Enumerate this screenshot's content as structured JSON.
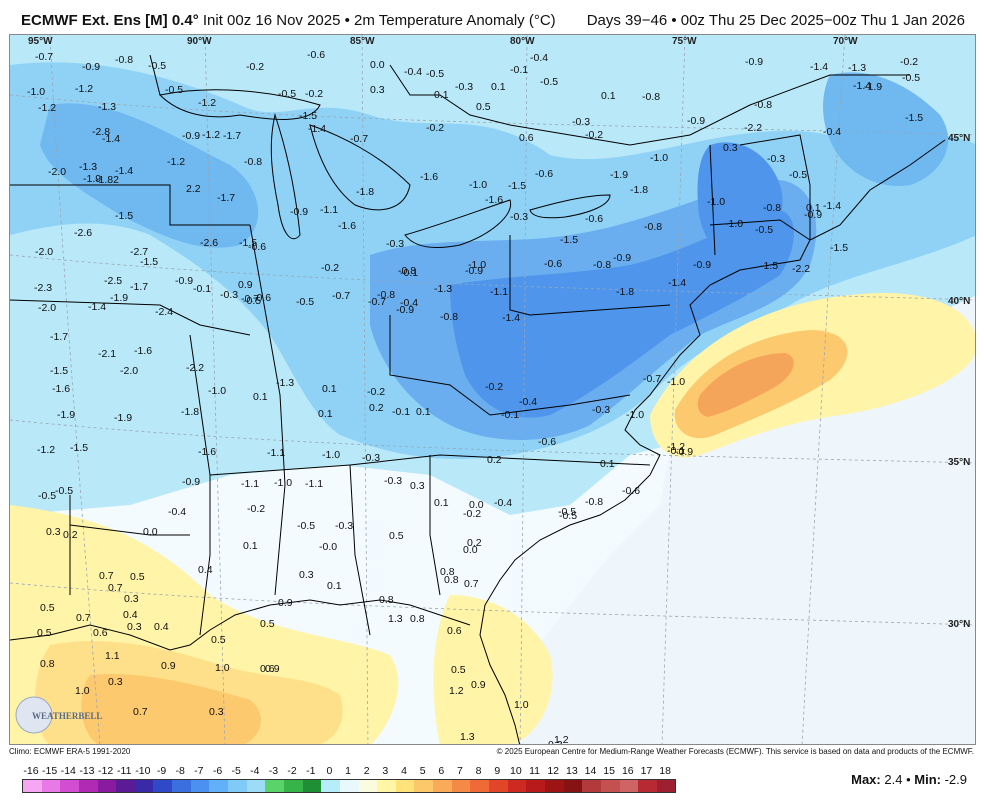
{
  "title": {
    "model": "ECMWF Ext. Ens [M] 0.4",
    "degree": "°",
    "init": "Init 00z 16 Nov 2025 • 2m Temperature Anomaly (°C)",
    "valid": "Days 39−46 • 00z Thu 25 Dec 2025−00z Thu 1 Jan 2026"
  },
  "credits": {
    "climo": "Climo: ECMWF ERA-5 1991-2020",
    "copyright": "© 2025 European Centre for Medium-Range Weather Forecasts (ECMWF). This service is based on data and products of the ECMWF."
  },
  "stats": {
    "max_label": "Max:",
    "max": "2.4",
    "sep": "•",
    "min_label": "Min:",
    "min": "-2.9"
  },
  "legend": {
    "ticks": [
      "-16",
      "-15",
      "-14",
      "-13",
      "-12",
      "-11",
      "-10",
      "-9",
      "-8",
      "-7",
      "-6",
      "-5",
      "-4",
      "-3",
      "-2",
      "-1",
      "0",
      "1",
      "2",
      "3",
      "4",
      "5",
      "6",
      "7",
      "8",
      "9",
      "10",
      "11",
      "12",
      "13",
      "14",
      "15",
      "16",
      "17",
      "18"
    ],
    "colors": [
      "#f6a6f2",
      "#e879e6",
      "#d24dd1",
      "#b02ab4",
      "#8a1aa0",
      "#5b1b96",
      "#3b2aa8",
      "#2f49c8",
      "#3b6fe0",
      "#4b92f0",
      "#62b0f7",
      "#80caf8",
      "#9cdcf6",
      "#5ad36a",
      "#36b44a",
      "#1f8f35",
      "#b7ecf9",
      "#e9f8fd",
      "#fbfbe0",
      "#fff6a6",
      "#ffe27a",
      "#fdc86a",
      "#f9ab5a",
      "#f58a46",
      "#ef6a36",
      "#e24628",
      "#cf2a22",
      "#b81a1c",
      "#9c1414",
      "#861214",
      "#b23a3a",
      "#c45050",
      "#cf6464",
      "#b72a33",
      "#9e2030"
    ]
  },
  "map": {
    "lon_labels": [
      "95°W",
      "90°W",
      "85°W",
      "80°W",
      "75°W",
      "70°W"
    ],
    "lat_labels": [
      "45°N",
      "40°N",
      "35°N",
      "30°N"
    ],
    "logo": "WEATHERBELL",
    "values": [
      "-0.7",
      "-0.9",
      "-0.8",
      "-0.5",
      "-0.2",
      "-0.6",
      "0.0",
      "-0.4",
      "-0.5",
      "-0.3",
      "-0.1",
      "-0.4",
      "-0.5",
      "-0.9",
      "-1.4",
      "-1.3",
      "-0.2",
      "-0.5",
      "-1.0",
      "-1.2",
      "-0.5",
      "-1.2",
      "-0.5",
      "-0.2",
      "0.3",
      "0.1",
      "0.5",
      "0.1",
      "-0.3",
      "0.1",
      "-0.8",
      "-0.9",
      "-0.8",
      "-1.4",
      "-1.9",
      "-1.2",
      "-1.3",
      "-1.2",
      "-1.5",
      "-1.4",
      "-0.7",
      "-0.2",
      "0.6",
      "-0.2",
      "0.3",
      "-0.3",
      "-2.2",
      "-2.8",
      "-1.4",
      "-0.9",
      "-1.7",
      "-1.8",
      "-1.6",
      "-0.6",
      "-1.0",
      "-0.5",
      "-0.4",
      "-1.5",
      "-2.0",
      "-1.3",
      "-1.4",
      "-1.2",
      "-0.8",
      "-1.0",
      "-1.5",
      "-1.9",
      "-1.8",
      "-1.0",
      "-0.8",
      "0.1",
      "-1.4",
      "-1.9",
      "-1.82",
      "2.2",
      "-1.7",
      "-0.9",
      "-1.1",
      "-1.6",
      "-1.6",
      "-0.3",
      "-0.6",
      "-0.8",
      "-1.0",
      "-0.5",
      "-0.9",
      "-1.5",
      "-2.6",
      "-2.6",
      "-1.5",
      "-0.6",
      "-0.3",
      "-0.8",
      "-1.0",
      "-1.5",
      "-0.9",
      "-0.9",
      "-1.5",
      "-2.2",
      "-2.0",
      "-2.7",
      "-1.5",
      "0.9",
      "-0.2",
      "-0.1",
      "-0.4",
      "-1.3",
      "-0.9",
      "-0.6",
      "-0.8",
      "-1.4",
      "-1.5",
      "-2.3",
      "-1.9",
      "-2.5",
      "-0.9",
      "-0.1",
      "-0.5",
      "-0.6",
      "-0.7",
      "-0.8",
      "-0.9",
      "-1.1",
      "-1.4",
      "-2.0",
      "-1.7",
      "-2.4",
      "-0.3",
      "-0.7",
      "-0.5",
      "-0.7",
      "-0.8",
      "-1.4",
      "-1.8",
      "-1.7",
      "-2.1",
      "-1.6",
      "-2.0",
      "-2.2",
      "-1.3",
      "0.1",
      "-0.2",
      "-0.1",
      "-0.2",
      "-0.4",
      "-0.7",
      "-1.0",
      "-1.5",
      "-1.6",
      "-1.9",
      "-1.9",
      "-1.8",
      "-1.0",
      "0.1",
      "0.1",
      "0.2",
      "0.1",
      "-0.1",
      "-0.3",
      "-0.6",
      "-1.0",
      "-1.2",
      "-1.2",
      "-1.5",
      "-1.6",
      "-1.1",
      "-1.0",
      "-0.3",
      "0.2",
      "0.1",
      "-0.1",
      "-0.5",
      "-0.9",
      "-1.1",
      "-1.0",
      "-1.1",
      "-0.3",
      "0.3",
      "0.1",
      "0.0",
      "-0.2",
      "-0.4",
      "-0.8",
      "-0.6",
      "-0.9",
      "-0.5",
      "-0.5",
      "-0.4",
      "-0.2",
      "-0.5",
      "-0.3",
      "-0.0",
      "0.5",
      "0.2",
      "0.3",
      "0.2",
      "0.0",
      "0.1",
      "0.0",
      "-0.5",
      "0.7",
      "0.7",
      "0.5",
      "0.4",
      "0.3",
      "0.1",
      "0.8",
      "0.8",
      "0.7",
      "0.5",
      "0.7",
      "0.3",
      "0.4",
      "0.4",
      "0.5",
      "0.9",
      "0.8",
      "0.8",
      "0.6",
      "0.5",
      "0.6",
      "0.3",
      "0.5",
      "0.3",
      "0.6",
      "1.3",
      "0.8",
      "1.1",
      "0.9",
      "1.0",
      "0.9",
      "0.5",
      "0.9",
      "1.0",
      "1.2",
      "1.2",
      "1.0",
      "0.7",
      "0.3",
      "1.3",
      "0.3",
      "0.1",
      "0.5",
      "1.1",
      "1.2",
      "0.1",
      "0.8",
      "0.2"
    ]
  }
}
